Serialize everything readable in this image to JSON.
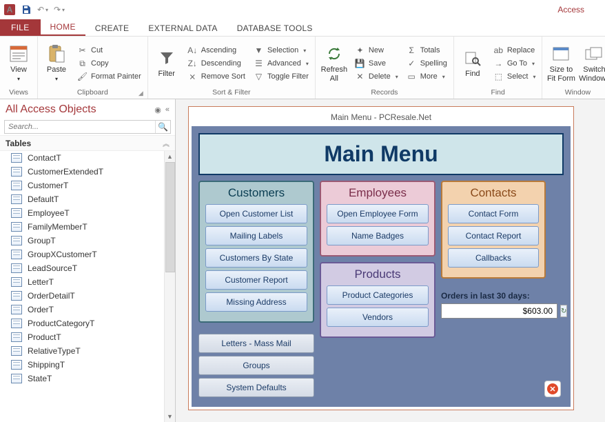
{
  "app_title": "Access",
  "ribbon": {
    "tabs": {
      "file": "FILE",
      "home": "HOME",
      "create": "CREATE",
      "external": "EXTERNAL DATA",
      "dbtools": "DATABASE TOOLS"
    },
    "views": {
      "view": "View",
      "group": "Views"
    },
    "clipboard": {
      "paste": "Paste",
      "cut": "Cut",
      "copy": "Copy",
      "format_painter": "Format Painter",
      "group": "Clipboard"
    },
    "sortfilter": {
      "filter": "Filter",
      "asc": "Ascending",
      "desc": "Descending",
      "remove": "Remove Sort",
      "selection": "Selection",
      "advanced": "Advanced",
      "toggle": "Toggle Filter",
      "group": "Sort & Filter"
    },
    "records": {
      "refresh": "Refresh\nAll",
      "new": "New",
      "save": "Save",
      "delete": "Delete",
      "totals": "Totals",
      "spelling": "Spelling",
      "more": "More",
      "group": "Records"
    },
    "find": {
      "find": "Find",
      "replace": "Replace",
      "goto": "Go To",
      "select": "Select",
      "group": "Find"
    },
    "window": {
      "size": "Size to\nFit Form",
      "switch": "Switch\nWindows",
      "group": "Window"
    }
  },
  "nav": {
    "title": "All Access Objects",
    "search_placeholder": "Search...",
    "group": "Tables",
    "tables": [
      "ContactT",
      "CustomerExtendedT",
      "CustomerT",
      "DefaultT",
      "EmployeeT",
      "FamilyMemberT",
      "GroupT",
      "GroupXCustomerT",
      "LeadSourceT",
      "LetterT",
      "OrderDetailT",
      "OrderT",
      "ProductCategoryT",
      "ProductT",
      "RelativeTypeT",
      "ShippingT",
      "StateT"
    ]
  },
  "form": {
    "window_title": "Main Menu - PCResale.Net",
    "header": "Main Menu",
    "customers": {
      "title": "Customers",
      "buttons": [
        "Open Customer List",
        "Mailing Labels",
        "Customers By State",
        "Customer Report",
        "Missing Address"
      ]
    },
    "employees": {
      "title": "Employees",
      "buttons": [
        "Open Employee Form",
        "Name Badges"
      ]
    },
    "products": {
      "title": "Products",
      "buttons": [
        "Product Categories",
        "Vendors"
      ]
    },
    "contacts": {
      "title": "Contacts",
      "buttons": [
        "Contact Form",
        "Contact Report",
        "Callbacks"
      ]
    },
    "extra_buttons": [
      "Letters - Mass Mail",
      "Groups",
      "System Defaults"
    ],
    "orders_label": "Orders in last 30 days:",
    "orders_value": "$603.00"
  },
  "colors": {
    "accent": "#a4373a",
    "form_bg": "#6e81a8",
    "header_bg": "#cfe5ea",
    "header_border": "#103a66"
  }
}
